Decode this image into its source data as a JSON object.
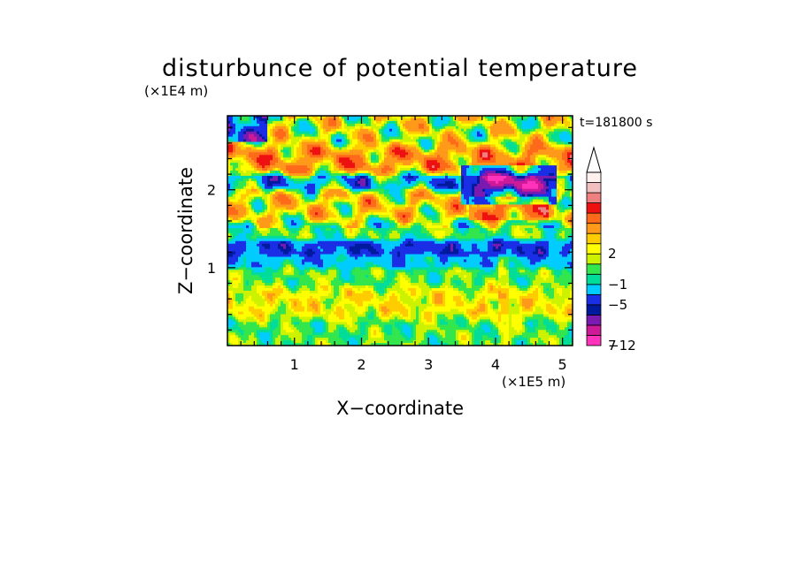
{
  "chart_data": {
    "type": "heatmap",
    "title": "disturbunce of potential temperature",
    "time_label": "t=181800 s",
    "xlabel": "X−coordinate",
    "ylabel": "Z−coordinate",
    "x_unit": "(×1E5 m)",
    "y_unit": "(×1E4 m)",
    "x_range": [
      0,
      5.15
    ],
    "y_range": [
      0,
      2.95
    ],
    "x_ticks": [
      {
        "value": 1,
        "label": "1"
      },
      {
        "value": 2,
        "label": "2"
      },
      {
        "value": 3,
        "label": "3"
      },
      {
        "value": 4,
        "label": "4"
      },
      {
        "value": 5,
        "label": "5"
      }
    ],
    "y_ticks": [
      {
        "value": 1,
        "label": "1"
      },
      {
        "value": 2,
        "label": "2"
      }
    ],
    "colorbar": {
      "labels": [
        {
          "value": 7,
          "label": "7"
        },
        {
          "value": 2,
          "label": "2"
        },
        {
          "value": -1,
          "label": "−1"
        },
        {
          "value": -5,
          "label": "−5"
        },
        {
          "value": -12,
          "label": "−12"
        }
      ],
      "levels": [
        {
          "min": -12,
          "max": -10,
          "color": "#ff33bb"
        },
        {
          "min": -10,
          "max": -8,
          "color": "#cc1a99"
        },
        {
          "min": -8,
          "max": -6,
          "color": "#7a1ab0"
        },
        {
          "min": -6,
          "max": -5,
          "color": "#001a9e"
        },
        {
          "min": -5,
          "max": -3,
          "color": "#1a2ee6"
        },
        {
          "min": -3,
          "max": -1,
          "color": "#00ccff"
        },
        {
          "min": -1,
          "max": 0,
          "color": "#00dd99"
        },
        {
          "min": 0,
          "max": 1,
          "color": "#33e64d"
        },
        {
          "min": 1,
          "max": 2,
          "color": "#ccf200"
        },
        {
          "min": 2,
          "max": 3,
          "color": "#ffff00"
        },
        {
          "min": 3,
          "max": 4,
          "color": "#ffcc00"
        },
        {
          "min": 4,
          "max": 6,
          "color": "#ff991a"
        },
        {
          "min": 6,
          "max": 8,
          "color": "#ff6a1a"
        },
        {
          "min": 8,
          "max": 10,
          "color": "#ee1111"
        },
        {
          "min": 10,
          "max": 12,
          "color": "#f08080"
        },
        {
          "min": 12,
          "max": 14,
          "color": "#f2bfbf"
        },
        {
          "min": 14,
          "max": 16,
          "color": "#fff0f0"
        }
      ]
    },
    "field_description_bands": [
      {
        "z_range": [
          0.0,
          0.35
        ],
        "value": 0.5
      },
      {
        "z_range": [
          0.35,
          0.75
        ],
        "value": 2.5
      },
      {
        "z_range": [
          0.75,
          1.0
        ],
        "value": 0.5
      },
      {
        "z_range": [
          1.0,
          1.15
        ],
        "value": -2
      },
      {
        "z_range": [
          1.15,
          1.35
        ],
        "value": -4
      },
      {
        "z_range": [
          1.35,
          1.6
        ],
        "value": 0.5
      },
      {
        "z_range": [
          1.6,
          2.0
        ],
        "value": 3
      },
      {
        "z_range": [
          2.0,
          2.2
        ],
        "value": -2
      },
      {
        "z_range": [
          2.2,
          2.55
        ],
        "value": 5
      },
      {
        "z_range": [
          2.55,
          2.95
        ],
        "value": 2
      }
    ]
  }
}
